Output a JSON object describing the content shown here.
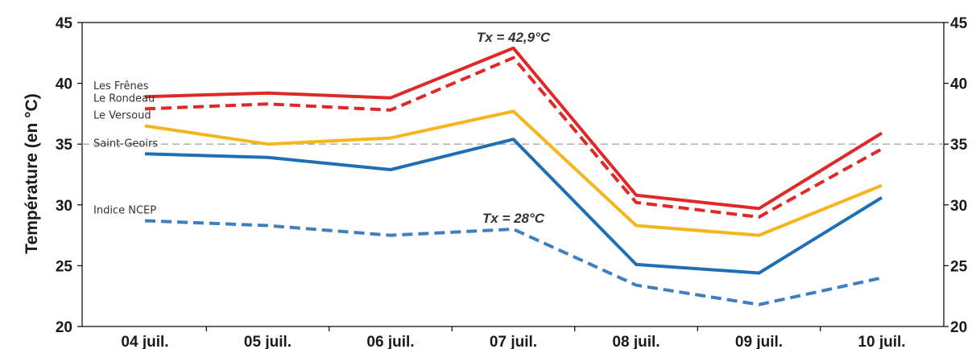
{
  "chart_data": {
    "type": "line",
    "categories": [
      "04 juil.",
      "05 juil.",
      "06 juil.",
      "07 juil.",
      "08 juil.",
      "09 juil.",
      "10 juil."
    ],
    "ylabel": "Température (en °C)",
    "ylim": [
      20,
      45
    ],
    "yticks": [
      "20",
      "25",
      "30",
      "35",
      "40",
      "45"
    ],
    "reference_line": {
      "y": 35,
      "color": "#a8a8a8",
      "style": "dashed"
    },
    "series": [
      {
        "name": "Les Frênes",
        "color": "#e02828",
        "style": "solid",
        "values": [
          38.9,
          39.2,
          38.8,
          42.9,
          30.8,
          29.7,
          35.9
        ]
      },
      {
        "name": "Le Rondeau",
        "color": "#e02828",
        "style": "dashed",
        "values": [
          37.9,
          38.3,
          37.8,
          42.1,
          30.2,
          29.0,
          34.6
        ]
      },
      {
        "name": "Le Versoud",
        "color": "#f6b51c",
        "style": "solid",
        "values": [
          36.5,
          35.0,
          35.5,
          37.7,
          28.3,
          27.5,
          31.6
        ]
      },
      {
        "name": "Saint-Geoirs",
        "color": "#1f6fb4",
        "style": "solid",
        "values": [
          34.2,
          33.9,
          32.9,
          35.4,
          25.1,
          24.4,
          30.6
        ]
      },
      {
        "name": "Indice NCEP",
        "color": "#3f7fbf",
        "style": "dashed",
        "values": [
          28.7,
          28.3,
          27.5,
          28.0,
          23.4,
          21.8,
          24.0
        ]
      }
    ],
    "annotations": [
      {
        "text": "Tx = 42,9°C",
        "category_index": 3,
        "y": 42.9
      },
      {
        "text": "Tx = 28°C",
        "category_index": 3,
        "y": 28.0
      }
    ],
    "grid": false
  }
}
